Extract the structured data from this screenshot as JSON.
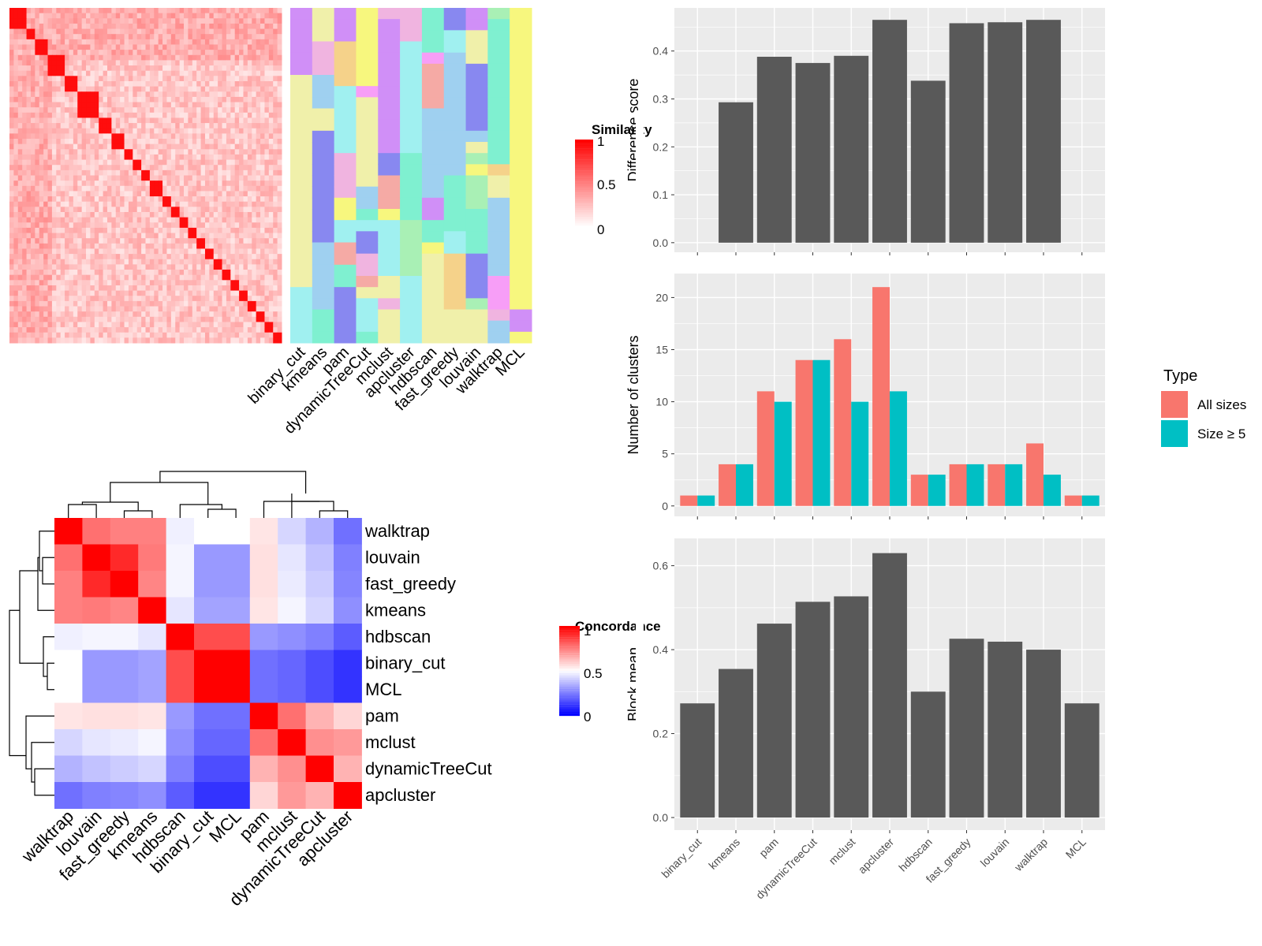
{
  "colors": {
    "panel_bg": "#ebebeb",
    "grid": "#ffffff",
    "bar_dark": "#595959",
    "all_sizes": "#f8766d",
    "size_ge5": "#00bfc4",
    "heat_high": "#ff0000",
    "heat_mid": "#ffffff",
    "heat_low": "#0000ff",
    "cluster_palette": [
      "#f7f77e",
      "#d08ff7",
      "#a0f0f0",
      "#f79ef7",
      "#f5d28a",
      "#8888f0",
      "#f5aaa5",
      "#a9f0b5",
      "#9fd0f0",
      "#f0f0aa",
      "#7ff0d0",
      "#f0b4e0"
    ]
  },
  "similarity_heatmap": {
    "legend_title": "Similarity",
    "legend_ticks": [
      "1",
      "0.5",
      "0"
    ],
    "method_labels": [
      "binary_cut",
      "kmeans",
      "pam",
      "dynamicTreeCut",
      "mclust",
      "apcluster",
      "hdbscan",
      "fast_greedy",
      "louvain",
      "walktrap",
      "MCL"
    ]
  },
  "concordance_heatmap": {
    "legend_title": "Concordance",
    "legend_ticks": [
      "1",
      "0.5",
      "0"
    ],
    "order": [
      "walktrap",
      "louvain",
      "fast_greedy",
      "kmeans",
      "hdbscan",
      "binary_cut",
      "MCL",
      "pam",
      "mclust",
      "dynamicTreeCut",
      "apcluster"
    ],
    "matrix": [
      [
        1.0,
        0.78,
        0.75,
        0.75,
        0.47,
        0.5,
        0.5,
        0.55,
        0.42,
        0.35,
        0.22
      ],
      [
        0.78,
        1.0,
        0.92,
        0.76,
        0.48,
        0.3,
        0.3,
        0.56,
        0.45,
        0.38,
        0.25
      ],
      [
        0.75,
        0.92,
        1.0,
        0.74,
        0.48,
        0.3,
        0.3,
        0.56,
        0.46,
        0.4,
        0.26
      ],
      [
        0.75,
        0.76,
        0.74,
        1.0,
        0.45,
        0.32,
        0.32,
        0.55,
        0.48,
        0.42,
        0.28
      ],
      [
        0.47,
        0.48,
        0.48,
        0.45,
        1.0,
        0.85,
        0.85,
        0.3,
        0.28,
        0.25,
        0.18
      ],
      [
        0.5,
        0.3,
        0.3,
        0.32,
        0.85,
        1.0,
        1.0,
        0.22,
        0.2,
        0.15,
        0.1
      ],
      [
        0.5,
        0.3,
        0.3,
        0.32,
        0.85,
        1.0,
        1.0,
        0.22,
        0.2,
        0.15,
        0.1
      ],
      [
        0.55,
        0.56,
        0.56,
        0.55,
        0.3,
        0.22,
        0.22,
        1.0,
        0.78,
        0.65,
        0.58
      ],
      [
        0.42,
        0.45,
        0.46,
        0.48,
        0.28,
        0.2,
        0.2,
        0.78,
        1.0,
        0.72,
        0.7
      ],
      [
        0.35,
        0.38,
        0.4,
        0.42,
        0.25,
        0.15,
        0.15,
        0.65,
        0.72,
        1.0,
        0.65
      ],
      [
        0.22,
        0.25,
        0.26,
        0.28,
        0.18,
        0.1,
        0.1,
        0.58,
        0.7,
        0.65,
        1.0
      ]
    ]
  },
  "legend": {
    "title": "Type",
    "items": [
      "All sizes",
      "Size ≥ 5"
    ]
  },
  "chart_data": [
    {
      "type": "bar",
      "categories": [
        "binary_cut",
        "kmeans",
        "pam",
        "dynamicTreeCut",
        "mclust",
        "apcluster",
        "hdbscan",
        "fast_greedy",
        "louvain",
        "walktrap",
        "MCL"
      ],
      "values": [
        0,
        0.293,
        0.388,
        0.375,
        0.39,
        0.465,
        0.338,
        0.458,
        0.46,
        0.465,
        0
      ],
      "ylabel": "Difference score",
      "ylim": [
        -0.02,
        0.49
      ],
      "yticks": [
        "0.0",
        "0.1",
        "0.2",
        "0.3",
        "0.4"
      ],
      "grid": true
    },
    {
      "type": "bar",
      "categories": [
        "binary_cut",
        "kmeans",
        "pam",
        "dynamicTreeCut",
        "mclust",
        "apcluster",
        "hdbscan",
        "fast_greedy",
        "louvain",
        "walktrap",
        "MCL"
      ],
      "series": [
        {
          "name": "All sizes",
          "values": [
            1,
            4,
            11,
            14,
            16,
            21,
            3,
            4,
            4,
            6,
            1
          ]
        },
        {
          "name": "Size ≥ 5",
          "values": [
            1,
            4,
            10,
            14,
            10,
            11,
            3,
            4,
            4,
            3,
            1
          ]
        }
      ],
      "ylabel": "Number of clusters",
      "ylim": [
        -1,
        22.3
      ],
      "yticks": [
        "0",
        "5",
        "10",
        "15",
        "20"
      ],
      "grid": true
    },
    {
      "type": "bar",
      "categories": [
        "binary_cut",
        "kmeans",
        "pam",
        "dynamicTreeCut",
        "mclust",
        "apcluster",
        "hdbscan",
        "fast_greedy",
        "louvain",
        "walktrap",
        "MCL"
      ],
      "values": [
        0.272,
        0.354,
        0.462,
        0.514,
        0.527,
        0.63,
        0.3,
        0.426,
        0.419,
        0.4,
        0.272
      ],
      "ylabel": "Block mean",
      "ylim": [
        -0.03,
        0.665
      ],
      "yticks": [
        "0.0",
        "0.2",
        "0.4",
        "0.6"
      ],
      "grid": true
    }
  ]
}
